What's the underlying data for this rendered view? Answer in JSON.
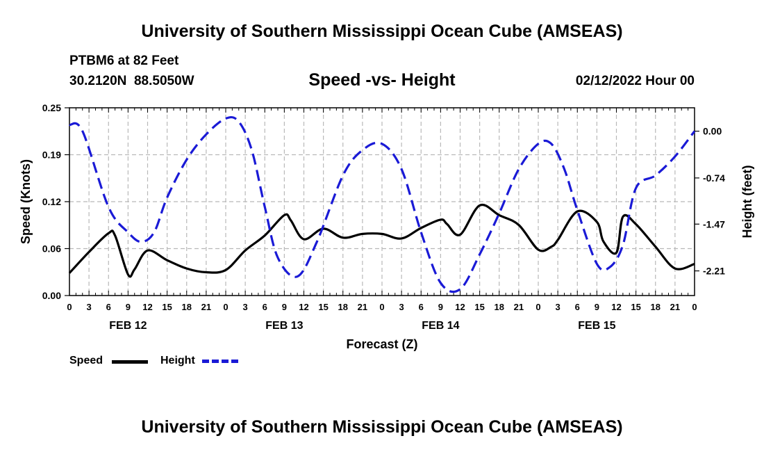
{
  "header": {
    "title": "University of Southern Mississippi Ocean Cube (AMSEAS)",
    "station_line": "PTBM6 at 82 Feet",
    "coords": "30.2120N  88.5050W",
    "datetime": "02/12/2022 Hour 00"
  },
  "footer": {
    "title": "University of Southern Mississippi Ocean Cube (AMSEAS)"
  },
  "legend": {
    "speed_label": "Speed",
    "height_label": "Height"
  },
  "chart_data": {
    "type": "line",
    "title": "Speed -vs- Height",
    "xlabel": "Forecast (Z)",
    "ylabel_left": "Speed (Knots)",
    "ylabel_right": "Height (feet)",
    "x_unit": "hours from 02/12/2022 00Z",
    "xlim": [
      0,
      96
    ],
    "ylim_left": [
      0.0,
      0.25
    ],
    "ylim_right": [
      -2.6,
      0.37
    ],
    "y_ticks_left": [
      "0.00",
      "0.06",
      "0.12",
      "0.19",
      "0.25"
    ],
    "y_tick_values_left": [
      0.0,
      0.0625,
      0.125,
      0.1875,
      0.25
    ],
    "y_ticks_right": [
      "0.00",
      "-0.74",
      "-1.47",
      "-2.21"
    ],
    "y_tick_values_right": [
      0.0,
      -0.74,
      -1.47,
      -2.21
    ],
    "x_ticks": [
      "0",
      "3",
      "6",
      "9",
      "12",
      "15",
      "18",
      "21",
      "0",
      "3",
      "6",
      "9",
      "12",
      "15",
      "18",
      "21",
      "0",
      "3",
      "6",
      "9",
      "12",
      "15",
      "18",
      "21",
      "0",
      "3",
      "6",
      "9",
      "12",
      "15",
      "18",
      "21",
      "0"
    ],
    "date_labels": [
      {
        "label": "FEB 12",
        "hour": 9
      },
      {
        "label": "FEB 13",
        "hour": 33
      },
      {
        "label": "FEB 14",
        "hour": 57
      },
      {
        "label": "FEB 15",
        "hour": 81
      }
    ],
    "grid": true,
    "series": [
      {
        "name": "Speed",
        "axis": "left",
        "color": "#000000",
        "style": "solid",
        "x": [
          0,
          3,
          6,
          7,
          9,
          10,
          12,
          15,
          18,
          21,
          24,
          27,
          30,
          33,
          34,
          36,
          39,
          42,
          45,
          48,
          51,
          54,
          57,
          58,
          60,
          63,
          66,
          69,
          72,
          74,
          75,
          78,
          81,
          82,
          84,
          85,
          87,
          90,
          93,
          96
        ],
        "y": [
          0.03,
          0.058,
          0.083,
          0.08,
          0.028,
          0.035,
          0.06,
          0.047,
          0.036,
          0.031,
          0.034,
          0.06,
          0.08,
          0.107,
          0.1,
          0.075,
          0.089,
          0.077,
          0.082,
          0.082,
          0.076,
          0.09,
          0.101,
          0.095,
          0.081,
          0.12,
          0.107,
          0.094,
          0.061,
          0.065,
          0.074,
          0.112,
          0.098,
          0.072,
          0.057,
          0.105,
          0.095,
          0.065,
          0.036,
          0.042
        ]
      },
      {
        "name": "Height",
        "axis": "right",
        "color": "#1a1ad6",
        "style": "dashed",
        "x": [
          0,
          2,
          6,
          9,
          11,
          13,
          15,
          18,
          21,
          24,
          26,
          28,
          30,
          32,
          35,
          38,
          42,
          45,
          48,
          51,
          54,
          57,
          60,
          63,
          66,
          69,
          72,
          74,
          76,
          78,
          81,
          83,
          85,
          87,
          90,
          93,
          96
        ],
        "y": [
          0.1,
          0.0,
          -1.2,
          -1.6,
          -1.75,
          -1.6,
          -1.05,
          -0.45,
          -0.05,
          0.2,
          0.15,
          -0.3,
          -1.2,
          -2.0,
          -2.3,
          -1.75,
          -0.7,
          -0.3,
          -0.2,
          -0.6,
          -1.6,
          -2.4,
          -2.5,
          -1.95,
          -1.3,
          -0.6,
          -0.2,
          -0.2,
          -0.6,
          -1.25,
          -2.1,
          -2.15,
          -1.8,
          -0.9,
          -0.7,
          -0.4,
          0.0
        ]
      }
    ]
  }
}
